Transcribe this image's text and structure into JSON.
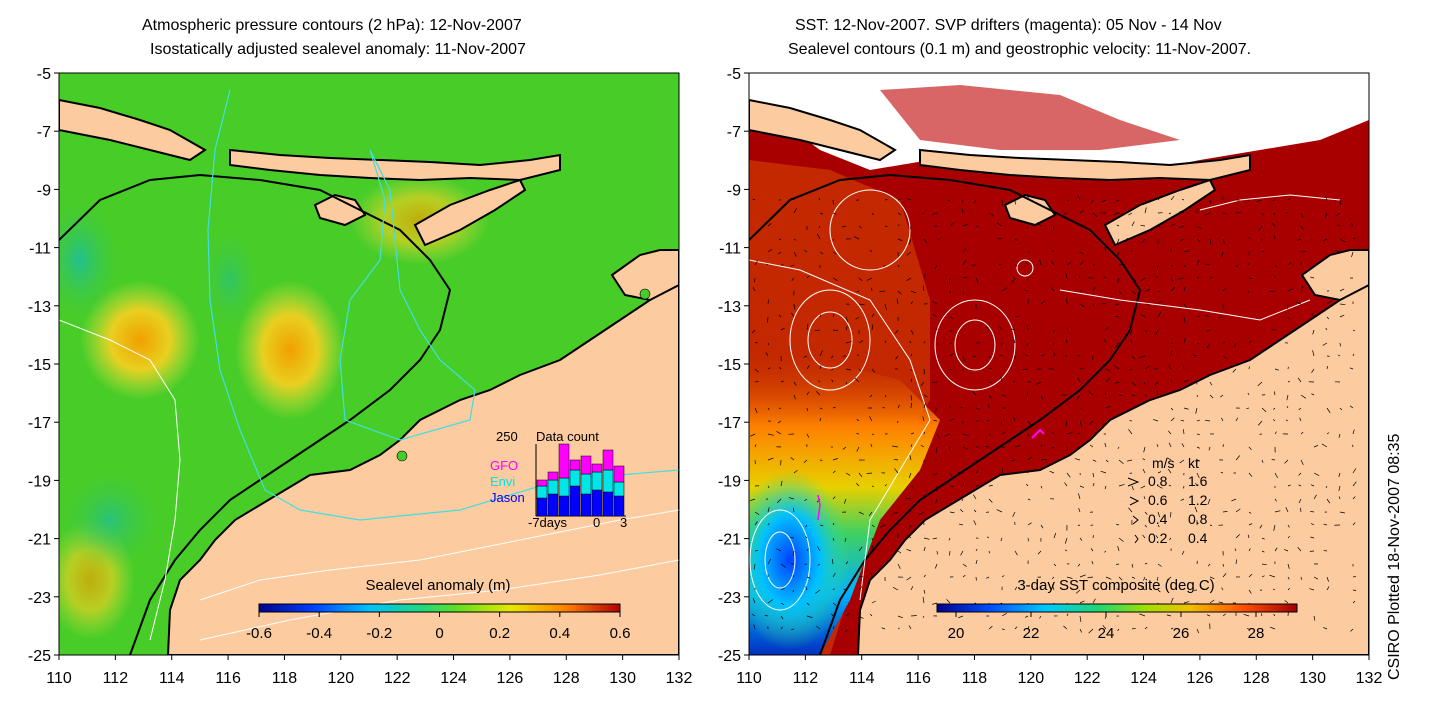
{
  "left_panel": {
    "title_line1": "Atmospheric pressure contours (2 hPa): 12-Nov-2007",
    "title_line2": "Isostatically adjusted sealevel anomaly: 11-Nov-2007",
    "y_ticks": [
      "-5",
      "-7",
      "-9",
      "-11",
      "-13",
      "-15",
      "-17",
      "-19",
      "-21",
      "-23",
      "-25"
    ],
    "x_ticks": [
      "110",
      "112",
      "114",
      "116",
      "118",
      "120",
      "122",
      "124",
      "126",
      "128",
      "130",
      "132"
    ],
    "colorbar_title": "Sealevel anomaly (m)",
    "colorbar_ticks": [
      "-0.6",
      "-0.4",
      "-0.2",
      "0",
      "0.2",
      "0.4",
      "0.6"
    ],
    "inset": {
      "title": "Data count",
      "max_label": "250",
      "legend": [
        {
          "label": "GFO",
          "color": "#ff00ff"
        },
        {
          "label": "Envi",
          "color": "#00e5e5"
        },
        {
          "label": "Jason",
          "color": "#0000ff"
        }
      ],
      "x_labels": [
        "-7days",
        "0",
        "3"
      ]
    }
  },
  "right_panel": {
    "title_line1": "SST: 12-Nov-2007. SVP drifters (magenta): 05 Nov - 14 Nov",
    "title_line2": "Sealevel contours (0.1 m) and geostrophic velocity: 11-Nov-2007.",
    "y_ticks": [
      "-5",
      "-7",
      "-9",
      "-11",
      "-13",
      "-15",
      "-17",
      "-19",
      "-21",
      "-23",
      "-25"
    ],
    "x_ticks": [
      "110",
      "112",
      "114",
      "116",
      "118",
      "120",
      "122",
      "124",
      "126",
      "128",
      "130",
      "132"
    ],
    "colorbar_title": "3-day SST composite (deg C)",
    "colorbar_ticks": [
      "20",
      "22",
      "24",
      "26",
      "28"
    ],
    "velocity_legend": {
      "header_ms": "m/s",
      "header_kt": "kt",
      "rows": [
        {
          "ms": "0.8",
          "kt": "1.6"
        },
        {
          "ms": "0.6",
          "kt": "1.2"
        },
        {
          "ms": "0.4",
          "kt": "0.8"
        },
        {
          "ms": "0.2",
          "kt": "0.4"
        }
      ]
    }
  },
  "credit": "CSIRO Plotted 18-Nov-2007 08:35",
  "colors": {
    "land": "#fccb9f",
    "ocean_green": "#44cc22",
    "warm_sst": "#a80000",
    "coast": "#000000"
  }
}
